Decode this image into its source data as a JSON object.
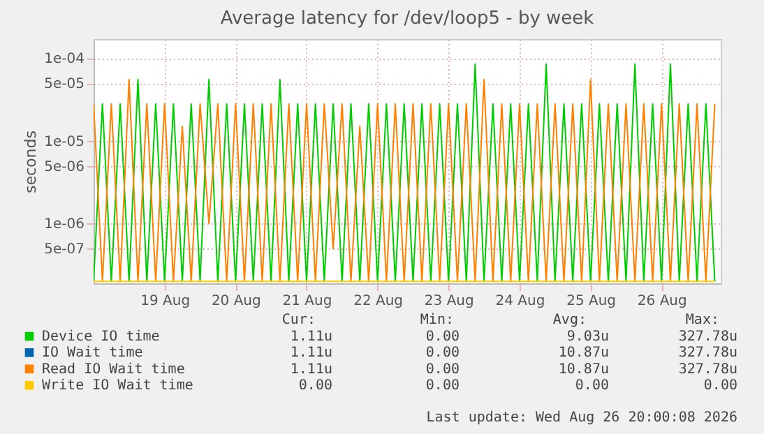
{
  "chart_data": {
    "type": "line",
    "title": "Average latency for /dev/loop5 - by week",
    "ylabel": "seconds",
    "x": [
      "2026-08-18T00:00",
      "2026-08-18T03:00",
      "2026-08-18T06:00",
      "2026-08-18T09:00",
      "2026-08-18T12:00",
      "2026-08-18T15:00",
      "2026-08-18T18:00",
      "2026-08-18T21:00",
      "2026-08-19T00:00",
      "2026-08-19T03:00",
      "2026-08-19T06:00",
      "2026-08-19T09:00",
      "2026-08-19T12:00",
      "2026-08-19T15:00",
      "2026-08-19T18:00",
      "2026-08-19T21:00",
      "2026-08-20T00:00",
      "2026-08-20T03:00",
      "2026-08-20T06:00",
      "2026-08-20T09:00",
      "2026-08-20T12:00",
      "2026-08-20T15:00",
      "2026-08-20T18:00",
      "2026-08-20T21:00",
      "2026-08-21T00:00",
      "2026-08-21T03:00",
      "2026-08-21T06:00",
      "2026-08-21T09:00",
      "2026-08-21T12:00",
      "2026-08-21T15:00",
      "2026-08-21T18:00",
      "2026-08-21T21:00",
      "2026-08-22T00:00",
      "2026-08-22T03:00",
      "2026-08-22T06:00",
      "2026-08-22T09:00",
      "2026-08-22T12:00",
      "2026-08-22T15:00",
      "2026-08-22T18:00",
      "2026-08-22T21:00",
      "2026-08-23T00:00",
      "2026-08-23T03:00",
      "2026-08-23T06:00",
      "2026-08-23T09:00",
      "2026-08-23T12:00",
      "2026-08-23T15:00",
      "2026-08-23T18:00",
      "2026-08-23T21:00",
      "2026-08-24T00:00",
      "2026-08-24T03:00",
      "2026-08-24T06:00",
      "2026-08-24T09:00",
      "2026-08-24T12:00",
      "2026-08-24T15:00",
      "2026-08-24T18:00",
      "2026-08-24T21:00",
      "2026-08-25T00:00",
      "2026-08-25T03:00",
      "2026-08-25T06:00",
      "2026-08-25T09:00",
      "2026-08-25T12:00",
      "2026-08-25T15:00",
      "2026-08-25T18:00",
      "2026-08-25T21:00",
      "2026-08-26T00:00",
      "2026-08-26T03:00",
      "2026-08-26T06:00",
      "2026-08-26T09:00",
      "2026-08-26T12:00",
      "2026-08-26T15:00",
      "2026-08-26T18:00"
    ],
    "series": [
      {
        "name": "Device IO time",
        "color": "#00cc00",
        "values": [
          2e-07,
          2.8e-05,
          2e-07,
          2.8e-05,
          2e-07,
          5.5e-05,
          2e-07,
          2.8e-05,
          2e-07,
          2.8e-05,
          2e-07,
          2.8e-05,
          2e-07,
          5.5e-05,
          2e-07,
          2.8e-05,
          2e-07,
          2.8e-05,
          2e-07,
          2.8e-05,
          2e-07,
          5.5e-05,
          2e-07,
          2.8e-05,
          2e-07,
          2.8e-05,
          2e-07,
          2.8e-05,
          2e-07,
          2.8e-05,
          2e-07,
          2.8e-05,
          2e-07,
          2.8e-05,
          2e-07,
          2.8e-05,
          2e-07,
          2.8e-05,
          2e-07,
          2.8e-05,
          2e-07,
          2.8e-05,
          2e-07,
          8.5e-05,
          2e-07,
          2.8e-05,
          2e-07,
          2.8e-05,
          2e-07,
          2.8e-05,
          2e-07,
          8.5e-05,
          2e-07,
          2.8e-05,
          2e-07,
          2.8e-05,
          2e-07,
          2.8e-05,
          2e-07,
          2.8e-05,
          2e-07,
          8.5e-05,
          2e-07,
          2.8e-05,
          2e-07,
          8.5e-05,
          2e-07,
          2.8e-05,
          2e-07,
          2.8e-05,
          2e-07
        ]
      },
      {
        "name": "IO Wait time",
        "color": "#0066b3",
        "values": [
          null,
          null,
          null,
          null,
          null,
          null,
          null,
          null,
          null,
          null,
          null,
          null,
          null,
          null,
          null,
          null,
          null,
          null,
          null,
          null,
          null,
          null,
          null,
          null,
          null,
          null,
          null,
          null,
          null,
          null,
          null,
          null,
          null,
          null,
          null,
          null,
          null,
          null,
          null,
          null,
          null,
          null,
          null,
          null,
          null,
          null,
          null,
          null,
          null,
          null,
          null,
          null,
          null,
          null,
          null,
          null,
          null,
          null,
          null,
          null,
          null,
          null,
          null,
          null,
          null,
          null,
          null,
          null,
          null,
          null,
          null
        ]
      },
      {
        "name": "Read IO Wait time",
        "color": "#ff8000",
        "values": [
          2.8e-05,
          2e-07,
          2.8e-05,
          2e-07,
          5.5e-05,
          2e-07,
          2.8e-05,
          2e-07,
          2.8e-05,
          2e-07,
          1.5e-05,
          2e-07,
          2.8e-05,
          1e-06,
          2.8e-05,
          2e-07,
          2.8e-05,
          2e-07,
          2.8e-05,
          2e-07,
          2.8e-05,
          2e-07,
          2.8e-05,
          2e-07,
          2.8e-05,
          2e-07,
          2.8e-05,
          5e-07,
          2.8e-05,
          2e-07,
          1.5e-05,
          2e-07,
          2.8e-05,
          2e-07,
          2.8e-05,
          2e-07,
          2.8e-05,
          2e-07,
          2.8e-05,
          2e-07,
          2.8e-05,
          2e-07,
          2.8e-05,
          2e-07,
          5.5e-05,
          2e-07,
          2.8e-05,
          2e-07,
          2.8e-05,
          2e-07,
          2.8e-05,
          2e-07,
          2.8e-05,
          2e-07,
          2.8e-05,
          2e-07,
          5.5e-05,
          2e-07,
          2.8e-05,
          2e-07,
          2.8e-05,
          2e-07,
          2.8e-05,
          2e-07,
          2.8e-05,
          2e-07,
          2.8e-05,
          2e-07,
          2.8e-05,
          2e-07,
          2.8e-05
        ]
      },
      {
        "name": "Write IO Wait time",
        "color": "#ffcc00",
        "values": [
          2e-07,
          2e-07,
          2e-07,
          2e-07,
          2e-07,
          2e-07,
          2e-07,
          2e-07,
          2e-07,
          2e-07,
          2e-07,
          2e-07,
          2e-07,
          2e-07,
          2e-07,
          2e-07,
          2e-07,
          2e-07,
          2e-07,
          2e-07,
          2e-07,
          2e-07,
          2e-07,
          2e-07,
          2e-07,
          2e-07,
          2e-07,
          2e-07,
          2e-07,
          2e-07,
          2e-07,
          2e-07,
          2e-07,
          2e-07,
          2e-07,
          2e-07,
          2e-07,
          2e-07,
          2e-07,
          2e-07,
          2e-07,
          2e-07,
          2e-07,
          2e-07,
          2e-07,
          2e-07,
          2e-07,
          2e-07,
          2e-07,
          2e-07,
          2e-07,
          2e-07,
          2e-07,
          2e-07,
          2e-07,
          2e-07,
          2e-07,
          2e-07,
          2e-07,
          2e-07,
          2e-07,
          2e-07,
          2e-07,
          2e-07,
          2e-07,
          2e-07,
          2e-07,
          2e-07,
          2e-07,
          2e-07,
          2e-07
        ]
      }
    ],
    "log": true,
    "ylim": [
      1.9e-07,
      0.00017
    ],
    "yticks": [
      {
        "value": 0.0001,
        "label": "1e-04"
      },
      {
        "value": 5e-05,
        "label": "5e-05"
      },
      {
        "value": 1e-05,
        "label": "1e-05"
      },
      {
        "value": 5e-06,
        "label": "5e-06"
      },
      {
        "value": 1e-06,
        "label": "1e-06"
      },
      {
        "value": 5e-07,
        "label": "5e-07"
      }
    ],
    "xlim": [
      "2026-08-18T00:00",
      "2026-08-26T20:00"
    ],
    "xticks": [
      {
        "value": "2026-08-19T00:00",
        "label": "19 Aug"
      },
      {
        "value": "2026-08-20T00:00",
        "label": "20 Aug"
      },
      {
        "value": "2026-08-21T00:00",
        "label": "21 Aug"
      },
      {
        "value": "2026-08-22T00:00",
        "label": "22 Aug"
      },
      {
        "value": "2026-08-23T00:00",
        "label": "23 Aug"
      },
      {
        "value": "2026-08-24T00:00",
        "label": "24 Aug"
      },
      {
        "value": "2026-08-25T00:00",
        "label": "25 Aug"
      },
      {
        "value": "2026-08-26T00:00",
        "label": "26 Aug"
      }
    ],
    "grid": true,
    "legend": "bottom",
    "annotations": [
      "Cur:",
      "Min:",
      "Avg:",
      "Max:",
      "1.11u",
      "0.00",
      "9.03u",
      "327.78u",
      "1.11u",
      "0.00",
      "10.87u",
      "327.78u",
      "1.11u",
      "0.00",
      "10.87u",
      "327.78u",
      "0.00",
      "0.00",
      "0.00",
      "0.00",
      "Last update: Wed Aug 26 20:00:08 2026"
    ]
  }
}
